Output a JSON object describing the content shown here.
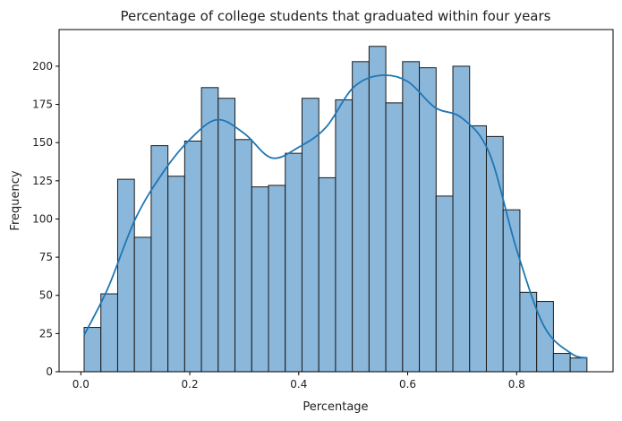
{
  "chart_data": {
    "type": "bar",
    "subtype": "histogram-with-kde",
    "title": "Percentage of college students that graduated within four years",
    "xlabel": "Percentage",
    "ylabel": "Frequency",
    "xlim": [
      -0.04,
      0.977
    ],
    "ylim": [
      0,
      224
    ],
    "xticks": [
      0.0,
      0.2,
      0.4,
      0.6,
      0.8
    ],
    "xtick_labels": [
      "0.0",
      "0.2",
      "0.4",
      "0.6",
      "0.8"
    ],
    "yticks": [
      0,
      25,
      50,
      75,
      100,
      125,
      150,
      175,
      200
    ],
    "ytick_labels": [
      "0",
      "25",
      "50",
      "75",
      "100",
      "125",
      "150",
      "175",
      "200"
    ],
    "grid": false,
    "bins": {
      "start": 0.006,
      "width": 0.03077,
      "counts": [
        29,
        51,
        126,
        88,
        148,
        128,
        151,
        186,
        179,
        152,
        121,
        122,
        143,
        179,
        127,
        178,
        203,
        213,
        176,
        203,
        199,
        115,
        200,
        161,
        154,
        106,
        52,
        46,
        12,
        9
      ]
    },
    "kde": {
      "x": [
        0.006,
        0.05,
        0.1,
        0.15,
        0.2,
        0.25,
        0.3,
        0.35,
        0.4,
        0.45,
        0.5,
        0.55,
        0.6,
        0.65,
        0.7,
        0.75,
        0.8,
        0.85,
        0.9,
        0.93
      ],
      "y": [
        24,
        55,
        100,
        130,
        152,
        165,
        156,
        140,
        147,
        160,
        186,
        194,
        190,
        173,
        166,
        143,
        80,
        30,
        12,
        9
      ]
    },
    "colors": {
      "bar_fill": "#8bb7db",
      "bar_edge": "#1a1a1a",
      "kde_line": "#1f77b4",
      "axis": "#000000"
    }
  }
}
